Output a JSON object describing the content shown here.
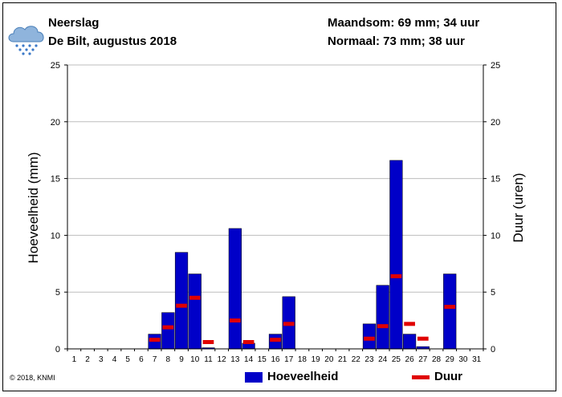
{
  "header": {
    "title": "Neerslag",
    "subtitle": "De Bilt, augustus 2018",
    "month_sum": "Maandsom: 69 mm; 34 uur",
    "normal": "Normaal: 73 mm; 38 uur",
    "icon": "rain-cloud-icon"
  },
  "footer": {
    "copyright": "© 2018, KNMI"
  },
  "colors": {
    "bar": "#0000c8",
    "duration": "#e00000"
  },
  "chart_data": {
    "type": "bar",
    "ylabel": "Hoeveelheid (mm)",
    "y2label": "Duur (uren)",
    "ylim": [
      0,
      25
    ],
    "y2lim": [
      0,
      25
    ],
    "yticks": [
      0,
      5,
      10,
      15,
      20,
      25
    ],
    "grid": true,
    "legend_placement": "bottom",
    "categories": [
      "1",
      "2",
      "3",
      "4",
      "5",
      "6",
      "7",
      "8",
      "9",
      "10",
      "11",
      "12",
      "13",
      "14",
      "15",
      "16",
      "17",
      "18",
      "19",
      "20",
      "21",
      "22",
      "23",
      "24",
      "25",
      "26",
      "27",
      "28",
      "29",
      "30",
      "31"
    ],
    "series": [
      {
        "name": "Hoeveelheid",
        "type": "bar",
        "values": [
          0,
          0,
          0,
          0,
          0,
          0,
          1.3,
          3.2,
          8.5,
          6.6,
          0.1,
          0,
          10.6,
          0.5,
          0,
          1.3,
          4.6,
          0,
          0,
          0,
          0,
          0,
          2.2,
          5.6,
          16.6,
          1.3,
          0.2,
          0,
          6.6,
          0,
          0
        ]
      },
      {
        "name": "Duur",
        "type": "marker",
        "values": [
          null,
          null,
          null,
          null,
          null,
          null,
          0.8,
          1.9,
          3.8,
          4.5,
          0.6,
          null,
          2.5,
          0.6,
          null,
          0.8,
          2.2,
          null,
          null,
          null,
          null,
          null,
          0.9,
          2.0,
          6.4,
          2.2,
          0.9,
          null,
          3.7,
          null,
          null
        ]
      }
    ]
  }
}
